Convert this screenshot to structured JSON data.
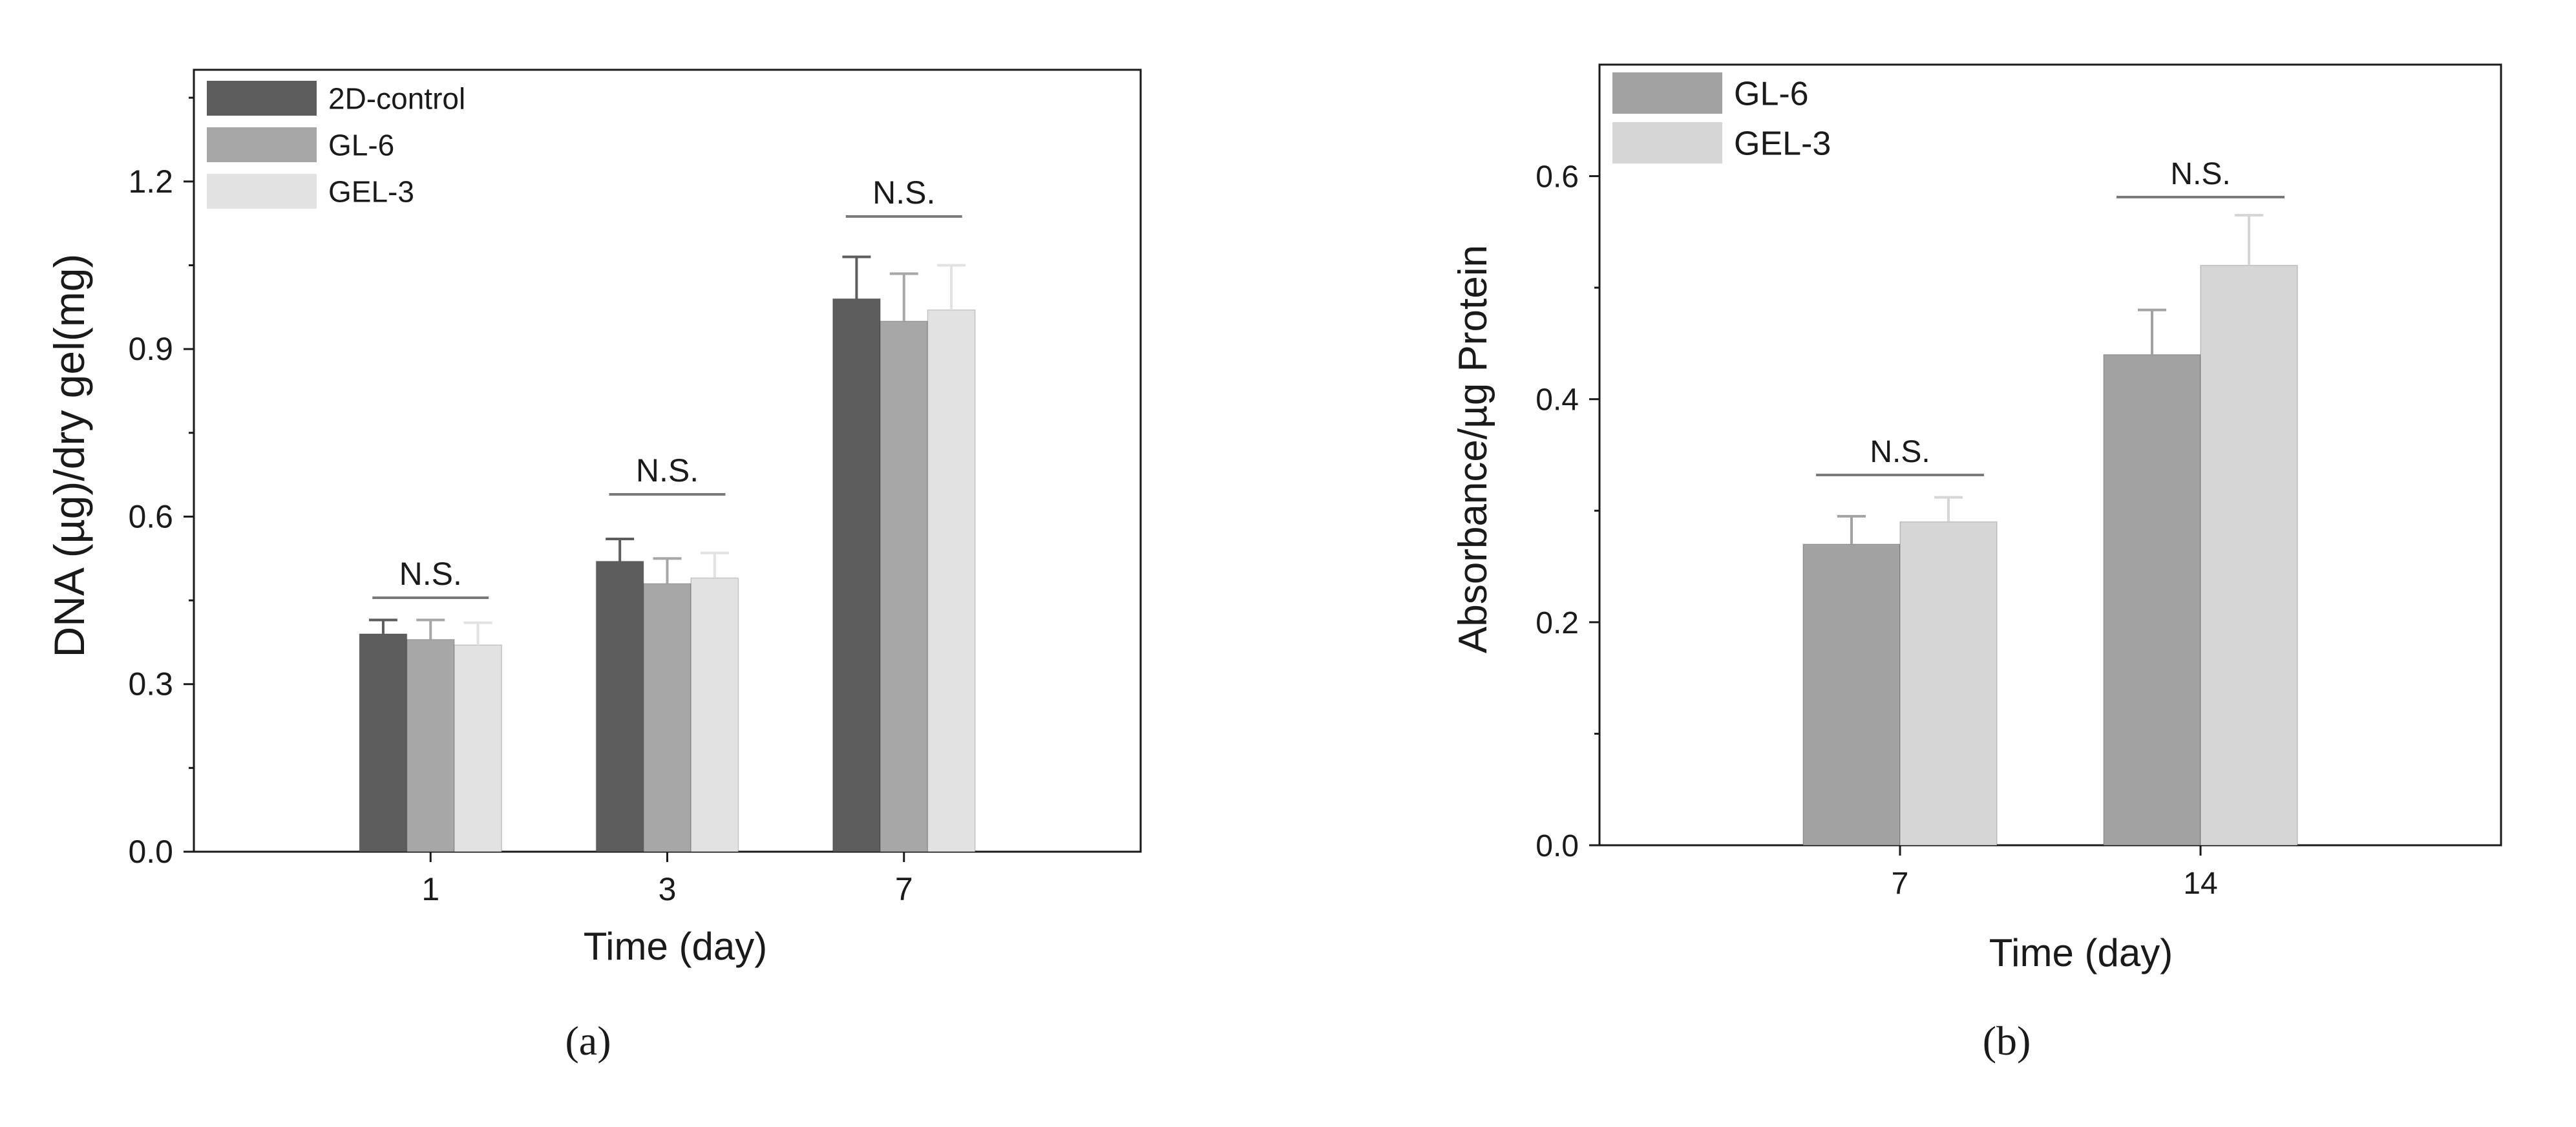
{
  "colors": {
    "series_dark": "#5d5d5d",
    "series_mid": "#a7a7a7",
    "series_light": "#e2e2e2",
    "series_mid_b": "#a2a2a2",
    "series_light_b": "#d6d6d6",
    "axis": "#1a1a1a",
    "bracket": "#7a7a7a"
  },
  "chart_data": [
    {
      "id": "a",
      "panel_label": "(a)",
      "type": "bar",
      "title": "",
      "xlabel": "Time (day)",
      "ylabel": "DNA (µg)/dry gel(mg)",
      "categories": [
        "1",
        "3",
        "7"
      ],
      "ylim": [
        0,
        1.4
      ],
      "yticks": [
        0.0,
        0.3,
        0.6,
        0.9,
        1.2
      ],
      "ytick_labels": [
        "0.0",
        "0.3",
        "0.6",
        "0.9",
        "1.2"
      ],
      "legend_position": "top-left",
      "series": [
        {
          "name": "2D-control",
          "color": "#5d5d5d",
          "values": [
            0.39,
            0.52,
            0.99
          ],
          "errors": [
            0.025,
            0.04,
            0.075
          ]
        },
        {
          "name": "GL-6",
          "color": "#a7a7a7",
          "values": [
            0.38,
            0.48,
            0.95
          ],
          "errors": [
            0.035,
            0.045,
            0.085
          ]
        },
        {
          "name": "GEL-3",
          "color": "#e2e2e2",
          "values": [
            0.37,
            0.49,
            0.97
          ],
          "errors": [
            0.04,
            0.045,
            0.08
          ]
        }
      ],
      "annotations": [
        "N.S.",
        "N.S.",
        "N.S."
      ]
    },
    {
      "id": "b",
      "panel_label": "(b)",
      "type": "bar",
      "title": "",
      "xlabel": "Time (day)",
      "ylabel": "Absorbance/µg Protein",
      "categories": [
        "7",
        "14"
      ],
      "ylim": [
        0,
        0.7
      ],
      "yticks": [
        0.0,
        0.2,
        0.4,
        0.6
      ],
      "ytick_labels": [
        "0.0",
        "0.2",
        "0.4",
        "0.6"
      ],
      "legend_position": "top-left",
      "series": [
        {
          "name": "GL-6",
          "color": "#a2a2a2",
          "values": [
            0.27,
            0.44
          ],
          "errors": [
            0.025,
            0.04
          ]
        },
        {
          "name": "GEL-3",
          "color": "#d6d6d6",
          "values": [
            0.29,
            0.52
          ],
          "errors": [
            0.022,
            0.045
          ]
        }
      ],
      "annotations": [
        "N.S.",
        "N.S."
      ]
    }
  ]
}
